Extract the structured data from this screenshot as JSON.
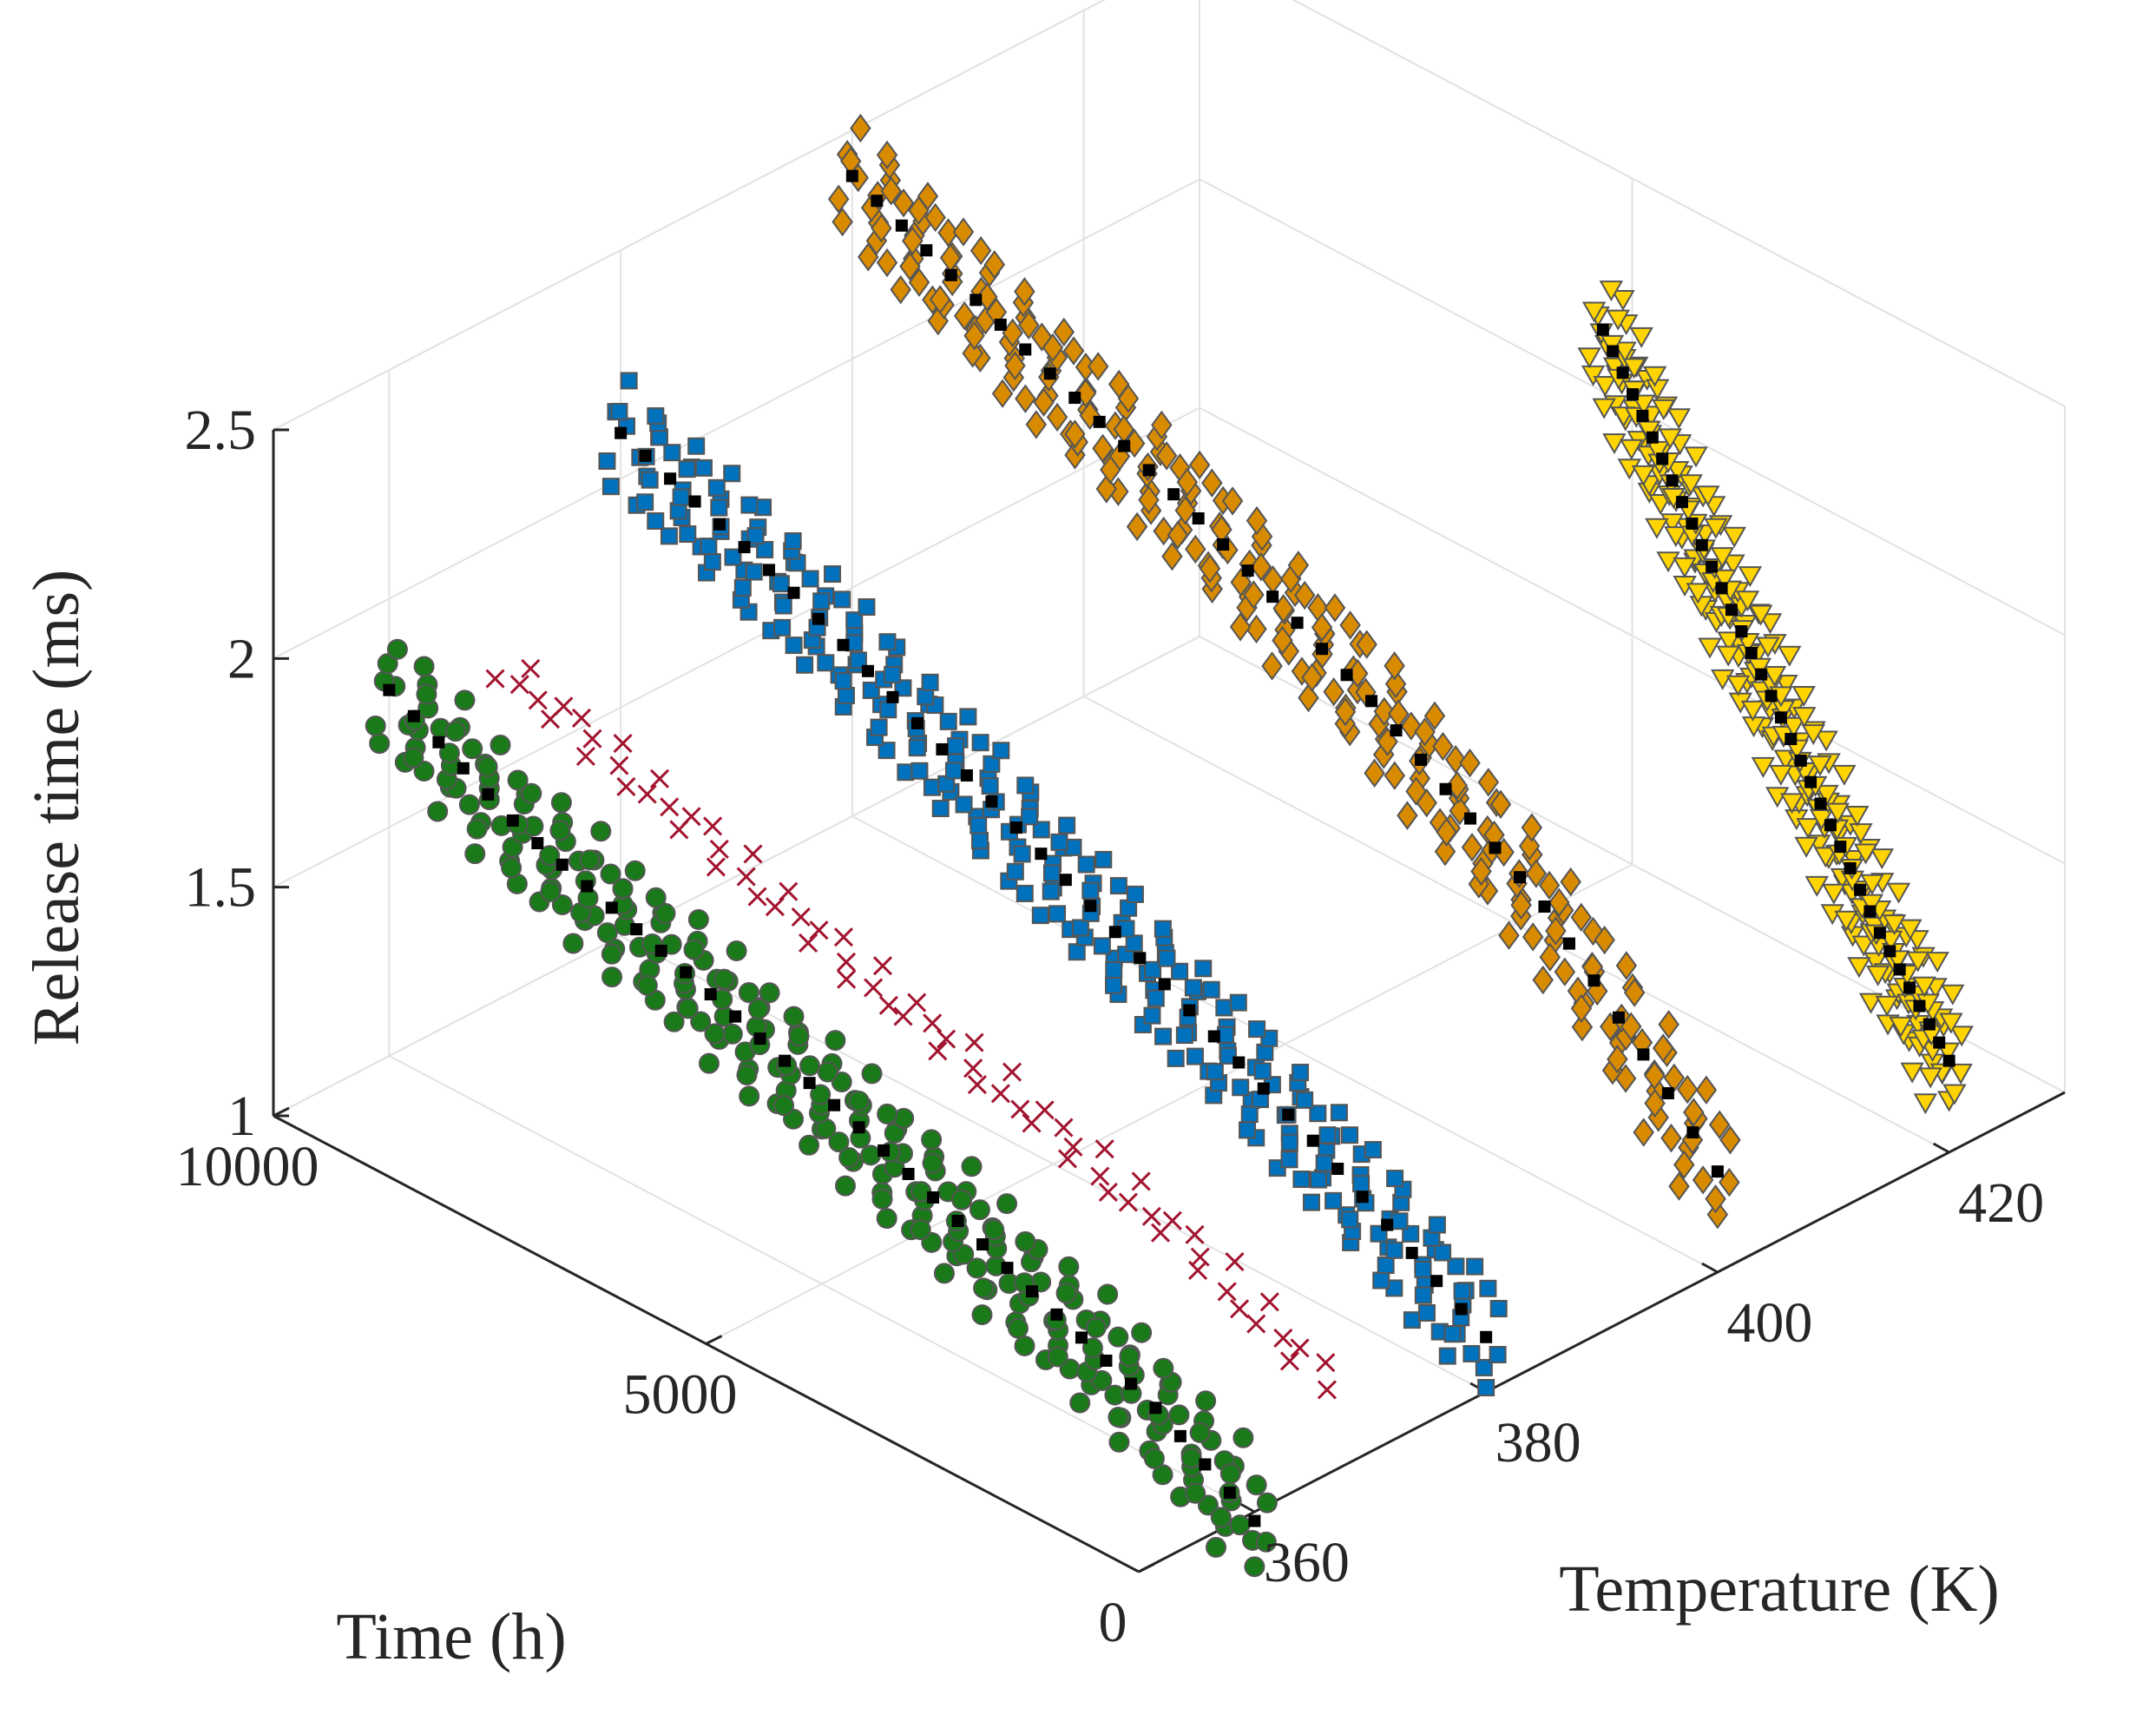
{
  "chart_data": {
    "type": "scatter",
    "projection": "3d",
    "title": "",
    "xlabel": "Time (h)",
    "ylabel": "Temperature (K)",
    "zlabel": "Release time (ms)",
    "xlim": [
      0,
      10000
    ],
    "ylim": [
      350,
      430
    ],
    "zlim": [
      1,
      2.5
    ],
    "xticks": [
      "0",
      "5000",
      "10000"
    ],
    "yticks": [
      "360",
      "380",
      "400",
      "420"
    ],
    "zticks": [
      "1",
      "1.5",
      "2",
      "2.5"
    ],
    "grid": true,
    "series": [
      {
        "marker": "circle",
        "color": "#1a7a1a",
        "temperature": 360,
        "points": [
          [
            10000,
            1.8
          ],
          [
            8500,
            1.65
          ],
          [
            6500,
            1.52
          ],
          [
            4500,
            1.38
          ],
          [
            2500,
            1.22
          ],
          [
            1200,
            1.12
          ],
          [
            0,
            0.98
          ]
        ]
      },
      {
        "marker": "x",
        "color": "#a2142f",
        "temperature": 370,
        "points": [
          [
            10000,
            1.72
          ],
          [
            8000,
            1.6
          ],
          [
            6000,
            1.47
          ],
          [
            4000,
            1.36
          ],
          [
            2000,
            1.24
          ],
          [
            500,
            1.1
          ]
        ]
      },
      {
        "marker": "square",
        "color": "#0072bd",
        "temperature": 380,
        "points": [
          [
            10000,
            2.1
          ],
          [
            8000,
            1.95
          ],
          [
            6000,
            1.75
          ],
          [
            4000,
            1.55
          ],
          [
            2000,
            1.35
          ],
          [
            0,
            1.12
          ]
        ]
      },
      {
        "marker": "diamond",
        "color": "#d98b00",
        "temperature": 400,
        "points": [
          [
            10000,
            2.4
          ],
          [
            8000,
            2.22
          ],
          [
            6000,
            2.05
          ],
          [
            4000,
            1.85
          ],
          [
            2000,
            1.6
          ],
          [
            800,
            1.38
          ],
          [
            0,
            1.22
          ]
        ]
      },
      {
        "marker": "triangle-down",
        "color": "#ffd400",
        "temperature": 420,
        "points": [
          [
            4000,
            2.4
          ],
          [
            3200,
            2.15
          ],
          [
            2400,
            1.9
          ],
          [
            1600,
            1.65
          ],
          [
            800,
            1.4
          ],
          [
            0,
            1.2
          ]
        ]
      }
    ]
  }
}
